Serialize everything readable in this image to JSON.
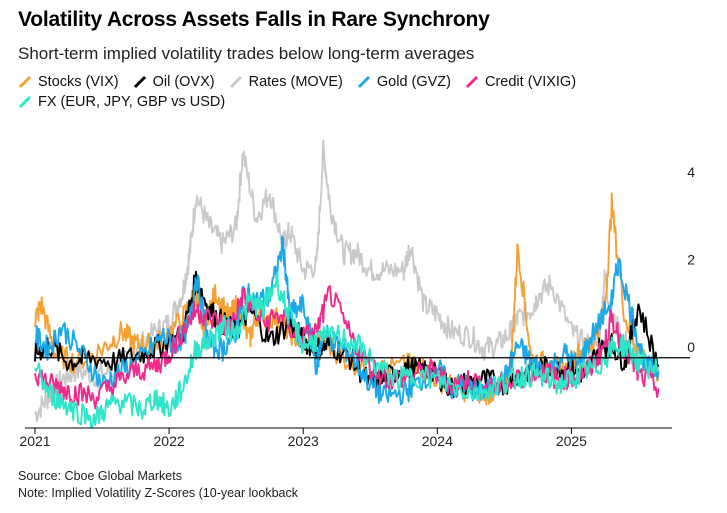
{
  "header": {
    "title": "Volatility Across Assets Falls in Rare Synchrony",
    "subtitle": "Short-term implied volatility trades below long-term averages"
  },
  "footer": {
    "source": "Source: Cboe Global Markets",
    "note": "Note: Implied Volatility Z-Scores (10-year lookback"
  },
  "chart_data": {
    "type": "line",
    "ylim": [
      -1.7,
      5.4
    ],
    "xlim": [
      2021.0,
      2025.75
    ],
    "y_ticks": [
      4,
      2,
      0
    ],
    "x_ticks": [
      "2021",
      "2022",
      "2023",
      "2024",
      "2025"
    ],
    "zero_line": true,
    "grid": false,
    "legend_position": "top-left",
    "series": [
      {
        "name": "Rates (MOVE)",
        "color": "#c9c9c9",
        "x": [
          2021.0,
          2021.1,
          2021.2,
          2021.3,
          2021.45,
          2021.6,
          2021.75,
          2021.9,
          2022.0,
          2022.1,
          2022.15,
          2022.2,
          2022.3,
          2022.4,
          2022.5,
          2022.55,
          2022.65,
          2022.75,
          2022.85,
          2022.9,
          2023.0,
          2023.1,
          2023.15,
          2023.2,
          2023.3,
          2023.4,
          2023.5,
          2023.6,
          2023.75,
          2023.8,
          2023.9,
          2024.0,
          2024.1,
          2024.25,
          2024.35,
          2024.45,
          2024.55,
          2024.6,
          2024.7,
          2024.75,
          2024.85,
          2025.0,
          2025.1,
          2025.2,
          2025.25,
          2025.3,
          2025.4,
          2025.5,
          2025.65
        ],
        "y": [
          -1.3,
          -0.9,
          -0.5,
          -0.3,
          -0.4,
          -0.3,
          0.2,
          0.6,
          0.8,
          1.5,
          2.3,
          3.7,
          3.0,
          2.6,
          3.0,
          4.7,
          3.2,
          3.8,
          2.6,
          2.9,
          2.0,
          2.1,
          4.8,
          3.5,
          2.4,
          2.4,
          2.0,
          2.0,
          2.0,
          2.6,
          1.2,
          1.0,
          0.6,
          0.5,
          0.2,
          0.3,
          0.6,
          0.9,
          1.1,
          1.4,
          1.7,
          0.6,
          0.3,
          0.3,
          1.9,
          0.9,
          0.4,
          0.0,
          -0.2
        ]
      },
      {
        "name": "Stocks (VIX)",
        "color": "#f5a033",
        "x": [
          2021.0,
          2021.05,
          2021.15,
          2021.3,
          2021.5,
          2021.65,
          2021.75,
          2021.85,
          2021.95,
          2022.1,
          2022.2,
          2022.25,
          2022.35,
          2022.45,
          2022.5,
          2022.6,
          2022.65,
          2022.8,
          2022.9,
          2023.0,
          2023.15,
          2023.3,
          2023.5,
          2023.75,
          2023.85,
          2024.0,
          2024.15,
          2024.3,
          2024.4,
          2024.5,
          2024.55,
          2024.6,
          2024.7,
          2024.85,
          2024.95,
          2025.05,
          2025.15,
          2025.25,
          2025.3,
          2025.4,
          2025.5,
          2025.65
        ],
        "y": [
          0.9,
          1.2,
          0.1,
          -0.1,
          0.2,
          0.6,
          0.3,
          0.3,
          0.4,
          0.9,
          1.5,
          0.7,
          1.5,
          0.9,
          1.2,
          0.4,
          1.0,
          0.9,
          0.6,
          0.3,
          0.4,
          0.0,
          -0.3,
          -0.2,
          -0.1,
          -0.5,
          -0.7,
          -0.8,
          -0.8,
          -0.6,
          -0.2,
          2.6,
          0.0,
          -0.2,
          -0.3,
          0.1,
          0.3,
          1.1,
          3.5,
          0.9,
          0.2,
          -0.5
        ]
      },
      {
        "name": "Oil (OVX)",
        "color": "#000000",
        "x": [
          2021.0,
          2021.1,
          2021.25,
          2021.4,
          2021.6,
          2021.8,
          2021.95,
          2022.1,
          2022.2,
          2022.3,
          2022.4,
          2022.5,
          2022.6,
          2022.75,
          2022.9,
          2023.0,
          2023.1,
          2023.2,
          2023.35,
          2023.5,
          2023.6,
          2023.75,
          2023.9,
          2024.0,
          2024.1,
          2024.2,
          2024.35,
          2024.5,
          2024.6,
          2024.75,
          2024.9,
          2025.0,
          2025.1,
          2025.2,
          2025.3,
          2025.4,
          2025.5,
          2025.65
        ],
        "y": [
          0.1,
          0.3,
          -0.1,
          0.0,
          -0.1,
          0.1,
          0.3,
          0.5,
          1.8,
          1.1,
          0.8,
          0.6,
          1.1,
          0.4,
          0.8,
          0.4,
          0.2,
          0.3,
          0.0,
          -0.6,
          -0.5,
          -0.2,
          -0.3,
          -0.4,
          -0.7,
          -0.6,
          -0.5,
          -0.6,
          -0.4,
          -0.2,
          -0.3,
          -0.2,
          -0.4,
          0.2,
          0.3,
          -0.1,
          1.2,
          -0.2
        ]
      },
      {
        "name": "Gold (GVZ)",
        "color": "#1ba8e8",
        "x": [
          2021.0,
          2021.1,
          2021.2,
          2021.35,
          2021.5,
          2021.65,
          2021.8,
          2021.95,
          2022.05,
          2022.15,
          2022.2,
          2022.3,
          2022.4,
          2022.5,
          2022.55,
          2022.65,
          2022.75,
          2022.85,
          2022.9,
          2023.0,
          2023.1,
          2023.15,
          2023.25,
          2023.35,
          2023.5,
          2023.6,
          2023.75,
          2023.85,
          2024.0,
          2024.1,
          2024.2,
          2024.3,
          2024.4,
          2024.5,
          2024.6,
          2024.7,
          2024.8,
          2024.95,
          2025.05,
          2025.15,
          2025.3,
          2025.35,
          2025.45,
          2025.55,
          2025.65
        ],
        "y": [
          0.5,
          0.2,
          0.7,
          0.1,
          -0.6,
          -0.3,
          0.0,
          0.5,
          0.3,
          0.7,
          1.9,
          0.3,
          0.2,
          0.6,
          1.5,
          1.3,
          1.4,
          2.6,
          1.0,
          1.2,
          -0.2,
          0.6,
          0.3,
          0.1,
          -0.6,
          -0.9,
          -0.8,
          -0.6,
          -0.2,
          -0.7,
          -0.6,
          -0.8,
          -0.7,
          -0.5,
          0.3,
          -0.1,
          -0.3,
          0.1,
          -0.2,
          0.5,
          1.3,
          2.2,
          1.0,
          -0.2,
          -0.3
        ]
      },
      {
        "name": "Credit (VIXIG)",
        "color": "#ee2a8c",
        "x": [
          2021.0,
          2021.1,
          2021.2,
          2021.3,
          2021.45,
          2021.6,
          2021.75,
          2021.9,
          2022.0,
          2022.1,
          2022.2,
          2022.3,
          2022.45,
          2022.55,
          2022.7,
          2022.85,
          2022.95,
          2023.1,
          2023.2,
          2023.35,
          2023.5,
          2023.65,
          2023.8,
          2023.95,
          2024.1,
          2024.25,
          2024.4,
          2024.55,
          2024.65,
          2024.8,
          2024.9,
          2025.05,
          2025.15,
          2025.25,
          2025.3,
          2025.4,
          2025.5,
          2025.65
        ],
        "y": [
          -0.3,
          -0.6,
          -0.7,
          -0.8,
          -0.9,
          -0.6,
          -0.3,
          -0.2,
          0.1,
          0.6,
          1.1,
          0.9,
          0.7,
          1.4,
          0.8,
          1.0,
          0.4,
          0.6,
          1.5,
          0.5,
          -0.2,
          -0.5,
          -0.4,
          -0.3,
          -0.6,
          -0.5,
          -0.7,
          -0.6,
          -0.4,
          -0.3,
          -0.5,
          -0.4,
          -0.2,
          0.3,
          0.9,
          0.2,
          -0.4,
          -0.7
        ]
      },
      {
        "name": "FX (EUR, JPY, GBP vs USD)",
        "color": "#2ee5c8",
        "x": [
          2021.0,
          2021.1,
          2021.2,
          2021.3,
          2021.45,
          2021.55,
          2021.65,
          2021.8,
          2021.9,
          2022.0,
          2022.1,
          2022.2,
          2022.3,
          2022.4,
          2022.5,
          2022.6,
          2022.7,
          2022.8,
          2022.9,
          2023.0,
          2023.1,
          2023.25,
          2023.4,
          2023.55,
          2023.7,
          2023.85,
          2024.0,
          2024.15,
          2024.3,
          2024.45,
          2024.55,
          2024.65,
          2024.75,
          2024.9,
          2025.0,
          2025.1,
          2025.2,
          2025.3,
          2025.4,
          2025.5,
          2025.65
        ],
        "y": [
          -0.2,
          -0.8,
          -1.0,
          -1.2,
          -1.4,
          -1.1,
          -1.0,
          -1.2,
          -0.9,
          -1.2,
          -0.7,
          0.2,
          0.4,
          0.7,
          0.6,
          1.3,
          1.1,
          1.8,
          0.9,
          0.3,
          0.4,
          0.5,
          0.3,
          -0.2,
          -0.5,
          -0.4,
          -0.5,
          -0.7,
          -0.8,
          -0.6,
          -0.5,
          -0.4,
          -0.4,
          -0.6,
          -0.5,
          -0.3,
          -0.2,
          0.2,
          0.3,
          -0.1,
          -0.3
        ]
      }
    ]
  }
}
